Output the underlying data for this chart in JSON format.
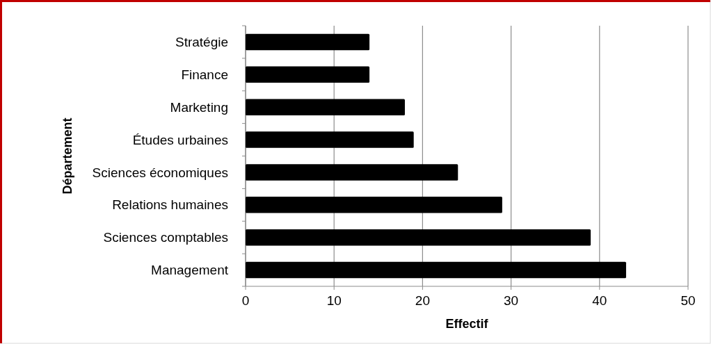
{
  "chart_data": {
    "type": "bar",
    "orientation": "horizontal",
    "xlabel": "Effectif",
    "ylabel": "Département",
    "categories": [
      "Stratégie",
      "Finance",
      "Marketing",
      "Études urbaines",
      "Sciences économiques",
      "Relations humaines",
      "Sciences comptables",
      "Management"
    ],
    "values": [
      14,
      14,
      18,
      19,
      24,
      29,
      39,
      43
    ],
    "color": "#000000",
    "xlim": [
      0,
      50
    ],
    "xticks": [
      0,
      10,
      20,
      30,
      40,
      50
    ],
    "grid": "x"
  }
}
